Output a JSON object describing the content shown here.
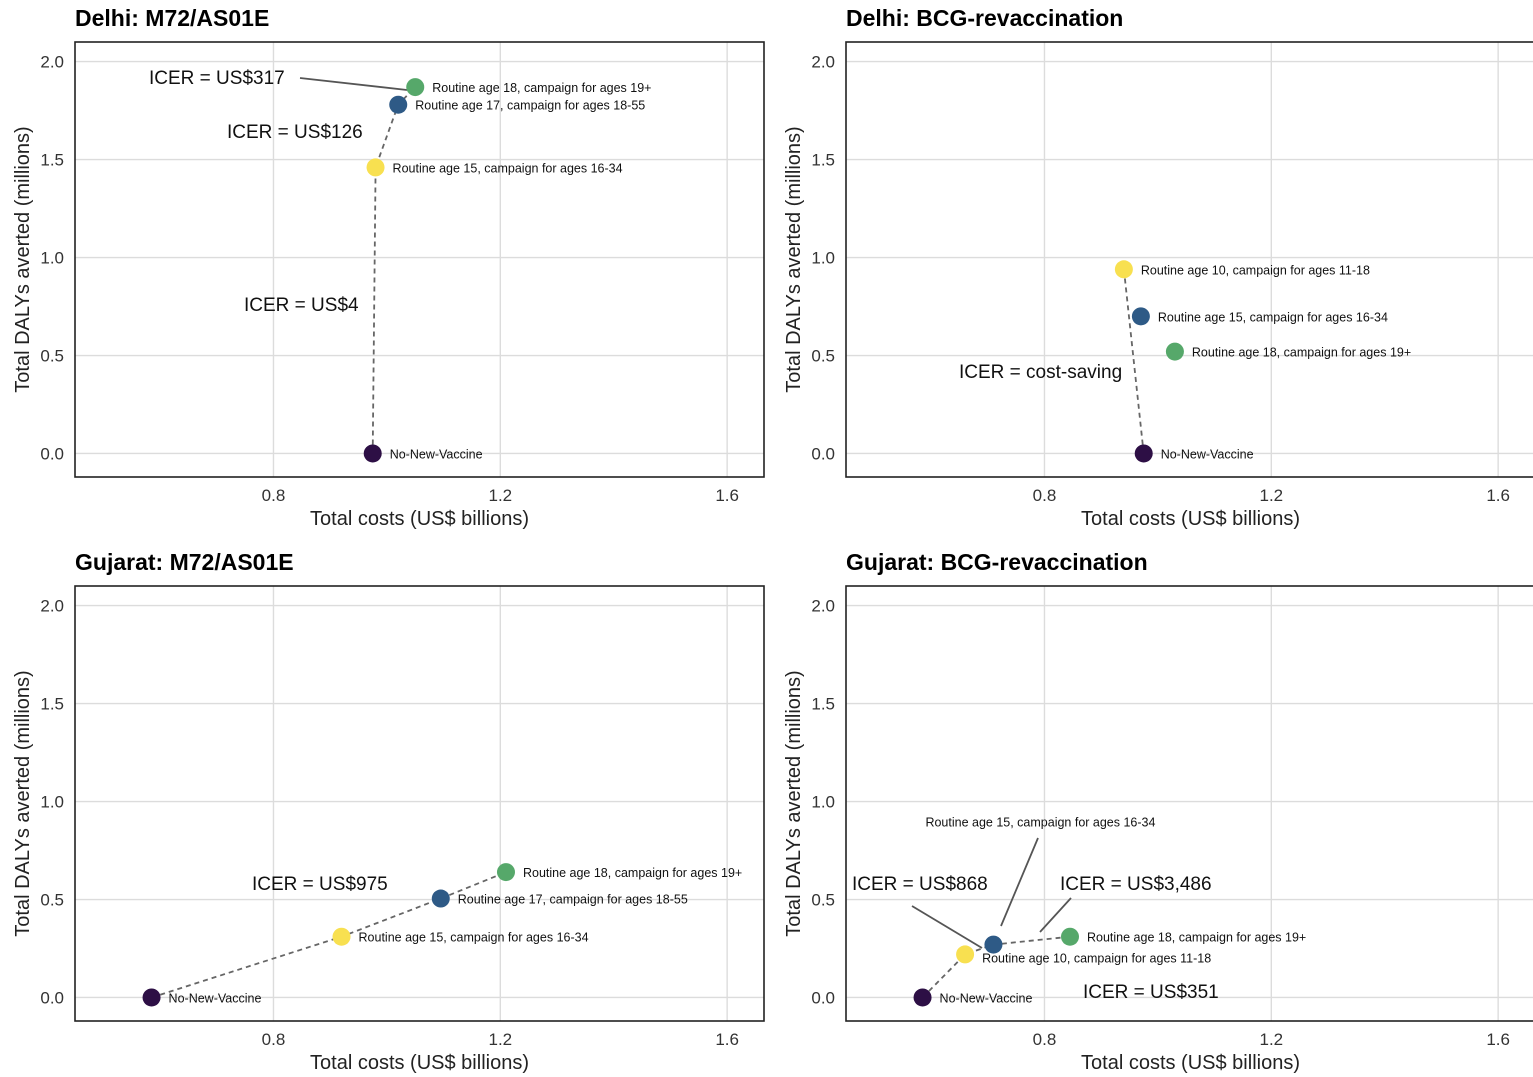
{
  "chart_data": [
    {
      "type": "scatter",
      "title": "Delhi: M72/AS01E",
      "xlabel": "Total costs (US$ billions)",
      "ylabel": "Total DALYs averted (millions)",
      "xlim": [
        0.45,
        1.665
      ],
      "ylim": [
        -0.12,
        2.1
      ],
      "xticks": [
        "0.8",
        "1.2",
        "1.6"
      ],
      "yticks": [
        "0.0",
        "0.5",
        "1.0",
        "1.5",
        "2.0"
      ],
      "grid": true,
      "points": [
        {
          "x": 0.975,
          "y": 0.0,
          "color": "#2d0f45",
          "label": "No-New-Vaccine"
        },
        {
          "x": 0.98,
          "y": 1.46,
          "color": "#f8e050",
          "label": "Routine age 15, campaign for ages 16-34"
        },
        {
          "x": 1.02,
          "y": 1.78,
          "color": "#2e5a86",
          "label": "Routine age 17, campaign for ages 18-55"
        },
        {
          "x": 1.05,
          "y": 1.87,
          "color": "#56a86a",
          "label": "Routine age 18, campaign for ages 19+"
        }
      ],
      "frontier": [
        "No-New-Vaccine",
        "Routine age 15, campaign for ages 16-34",
        "Routine age 17, campaign for ages 18-55",
        "Routine age 18, campaign for ages 19+"
      ],
      "annotations": [
        "ICER = US$317",
        "ICER = US$126",
        "ICER = US$4"
      ]
    },
    {
      "type": "scatter",
      "title": "Delhi: BCG-revaccination",
      "xlabel": "Total costs (US$ billions)",
      "ylabel": "Total DALYs averted (millions)",
      "xlim": [
        0.45,
        1.665
      ],
      "ylim": [
        -0.12,
        2.1
      ],
      "xticks": [
        "0.8",
        "1.2",
        "1.6"
      ],
      "yticks": [
        "0.0",
        "0.5",
        "1.0",
        "1.5",
        "2.0"
      ],
      "grid": true,
      "points": [
        {
          "x": 0.975,
          "y": 0.0,
          "color": "#2d0f45",
          "label": "No-New-Vaccine"
        },
        {
          "x": 0.94,
          "y": 0.94,
          "color": "#f8e050",
          "label": "Routine age 10, campaign for ages 11-18"
        },
        {
          "x": 0.97,
          "y": 0.7,
          "color": "#2e5a86",
          "label": "Routine age 15, campaign for ages 16-34"
        },
        {
          "x": 1.03,
          "y": 0.52,
          "color": "#56a86a",
          "label": "Routine age 18, campaign for ages 19+"
        }
      ],
      "frontier": [
        "No-New-Vaccine",
        "Routine age 10, campaign for ages 11-18"
      ],
      "annotations": [
        "ICER = cost-saving"
      ]
    },
    {
      "type": "scatter",
      "title": "Gujarat: M72/AS01E",
      "xlabel": "Total costs (US$ billions)",
      "ylabel": "Total DALYs averted (millions)",
      "xlim": [
        0.45,
        1.665
      ],
      "ylim": [
        -0.12,
        2.1
      ],
      "xticks": [
        "0.8",
        "1.2",
        "1.6"
      ],
      "yticks": [
        "0.0",
        "0.5",
        "1.0",
        "1.5",
        "2.0"
      ],
      "grid": true,
      "points": [
        {
          "x": 0.585,
          "y": 0.0,
          "color": "#2d0f45",
          "label": "No-New-Vaccine"
        },
        {
          "x": 0.92,
          "y": 0.31,
          "color": "#f8e050",
          "label": "Routine age 15, campaign for ages 16-34"
        },
        {
          "x": 1.095,
          "y": 0.505,
          "color": "#2e5a86",
          "label": "Routine age 17, campaign for ages 18-55"
        },
        {
          "x": 1.21,
          "y": 0.64,
          "color": "#56a86a",
          "label": "Routine age 18, campaign for ages 19+"
        }
      ],
      "frontier": [
        "No-New-Vaccine",
        "Routine age 15, campaign for ages 16-34",
        "Routine age 17, campaign for ages 18-55",
        "Routine age 18, campaign for ages 19+"
      ],
      "annotations": [
        "ICER = US$975"
      ]
    },
    {
      "type": "scatter",
      "title": "Gujarat: BCG-revaccination",
      "xlabel": "Total costs (US$ billions)",
      "ylabel": "Total DALYs averted (millions)",
      "xlim": [
        0.45,
        1.665
      ],
      "ylim": [
        -0.12,
        2.1
      ],
      "xticks": [
        "0.8",
        "1.2",
        "1.6"
      ],
      "yticks": [
        "0.0",
        "0.5",
        "1.0",
        "1.5",
        "2.0"
      ],
      "grid": true,
      "points": [
        {
          "x": 0.585,
          "y": 0.0,
          "color": "#2d0f45",
          "label": "No-New-Vaccine"
        },
        {
          "x": 0.66,
          "y": 0.22,
          "color": "#f8e050",
          "label": "Routine age 10, campaign for ages 11-18"
        },
        {
          "x": 0.71,
          "y": 0.27,
          "color": "#2e5a86",
          "label": "Routine age 15, campaign for ages 16-34"
        },
        {
          "x": 0.845,
          "y": 0.31,
          "color": "#56a86a",
          "label": "Routine age 18, campaign for ages 19+"
        }
      ],
      "frontier": [
        "No-New-Vaccine",
        "Routine age 10, campaign for ages 11-18",
        "Routine age 15, campaign for ages 16-34",
        "Routine age 18, campaign for ages 19+"
      ],
      "annotations": [
        "ICER = US$868",
        "ICER = US$3,486",
        "ICER = US$351"
      ]
    }
  ]
}
